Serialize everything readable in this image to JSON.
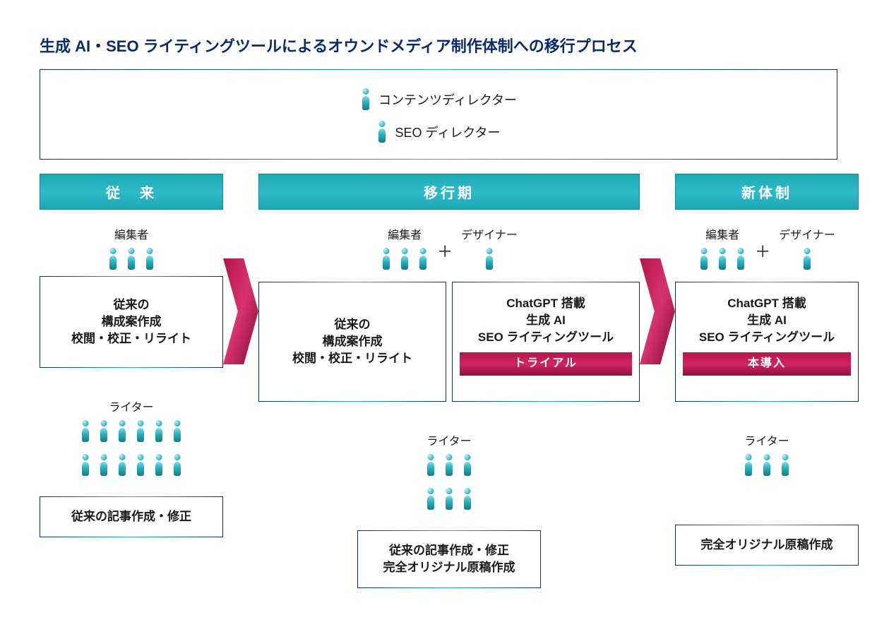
{
  "title": "生成 AI・SEO ライティングツールによるオウンドメディア制作体制への移行プロセス",
  "directors": {
    "content": "コンテンツディレクター",
    "seo": "SEO ディレクター"
  },
  "phases": {
    "legacy": {
      "header": "従　来",
      "editor_label": "編集者",
      "editor_count": 3,
      "box1_lines": [
        "従来の",
        "構成案作成",
        "校閲・校正・リライト"
      ],
      "writer_label": "ライター",
      "writer_rows": [
        6,
        6
      ],
      "bottom_lines": [
        "従来の記事作成・修正"
      ]
    },
    "transition": {
      "header": "移行期",
      "editor_label": "編集者",
      "editor_count": 3,
      "designer_label": "デザイナー",
      "designer_count": 1,
      "box_left_lines": [
        "従来の",
        "構成案作成",
        "校閲・校正・リライト"
      ],
      "box_right_lines": [
        "ChatGPT 搭載",
        "生成 AI",
        "SEO ライティングツール"
      ],
      "badge": "トライアル",
      "writer_label": "ライター",
      "writer_rows": [
        3,
        3
      ],
      "bottom_lines": [
        "従来の記事作成・修正",
        "完全オリジナル原稿作成"
      ]
    },
    "new": {
      "header": "新体制",
      "editor_label": "編集者",
      "editor_count": 3,
      "designer_label": "デザイナー",
      "designer_count": 1,
      "box_lines": [
        "ChatGPT 搭載",
        "生成 AI",
        "SEO ライティングツール"
      ],
      "badge": "本導入",
      "writer_label": "ライター",
      "writer_rows": [
        3
      ],
      "bottom_lines": [
        "完全オリジナル原稿作成"
      ]
    }
  },
  "styling": {
    "title_color": "#0a2b6b",
    "header_bg_gradient": [
      "#1fa6b3",
      "#2dbccb",
      "#1fa6b3"
    ],
    "badge_bg_gradient": [
      "#b2154a",
      "#d12562",
      "#8f1040"
    ],
    "arrow_gradient": [
      "#b2154a",
      "#d8326f",
      "#7d0d36"
    ],
    "border_gradient": [
      "#0a2b6b",
      "#24b4c1",
      "#0a2b6b"
    ],
    "person_gradient": [
      "#b9f0f4",
      "#3fbecb",
      "#0d8896"
    ],
    "text_color": "#1a1a1a",
    "title_fontsize": 22,
    "header_fontsize": 20,
    "body_fontsize": 17
  }
}
